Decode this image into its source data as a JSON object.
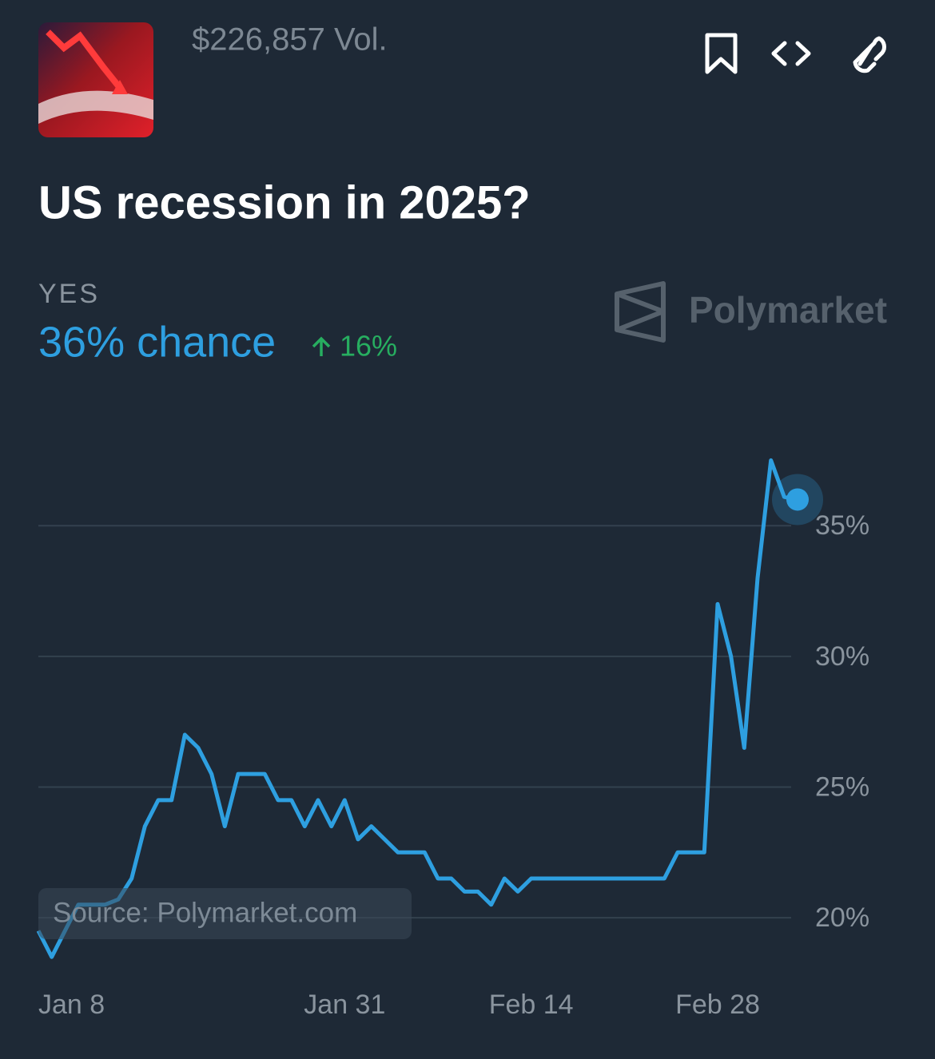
{
  "header": {
    "volume": "$226,857 Vol.",
    "title": "US recession in 2025?",
    "outcome": "YES",
    "chance": "36% chance",
    "change": "16%",
    "brand": "Polymarket"
  },
  "chart_data": {
    "type": "line",
    "source": "Source: Polymarket.com",
    "color": "#2e9fe0",
    "grid": true,
    "categories": [
      "Jan 8",
      null,
      null,
      null,
      null,
      null,
      null,
      null,
      null,
      null,
      null,
      null,
      null,
      null,
      null,
      null,
      null,
      null,
      null,
      null,
      null,
      null,
      null,
      "Jan 31",
      null,
      null,
      null,
      null,
      null,
      null,
      null,
      null,
      null,
      null,
      null,
      null,
      null,
      "Feb 14",
      null,
      null,
      null,
      null,
      null,
      null,
      null,
      null,
      null,
      null,
      null,
      null,
      null,
      "Feb 28",
      null,
      null,
      null,
      null,
      null,
      null
    ],
    "values": [
      19.5,
      18.5,
      19.5,
      20.5,
      20.5,
      20.5,
      20.7,
      21.5,
      23.5,
      24.5,
      24.5,
      27,
      26.5,
      25.5,
      23.5,
      25.5,
      25.5,
      25.5,
      24.5,
      24.5,
      23.5,
      24.5,
      23.5,
      24.5,
      23,
      23.5,
      23,
      22.5,
      22.5,
      22.5,
      21.5,
      21.5,
      21,
      21,
      20.5,
      21.5,
      21,
      21.5,
      21.5,
      21.5,
      21.5,
      21.5,
      21.5,
      21.5,
      21.5,
      21.5,
      21.5,
      21.5,
      22.5,
      22.5,
      22.5,
      32,
      30,
      26.5,
      33,
      37.5,
      36.1,
      36
    ],
    "ylim": [
      18,
      38
    ],
    "yticks": [
      {
        "value": 20,
        "label": "20%"
      },
      {
        "value": 25,
        "label": "25%"
      },
      {
        "value": 30,
        "label": "30%"
      },
      {
        "value": 35,
        "label": "35%"
      }
    ]
  }
}
